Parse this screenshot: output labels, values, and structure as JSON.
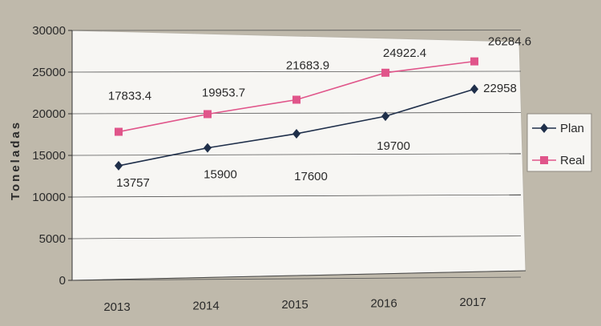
{
  "chart_data": {
    "type": "line",
    "categories": [
      "2013",
      "2014",
      "2015",
      "2016",
      "2017"
    ],
    "ylabel": "Toneladas",
    "ylim": [
      0,
      30000
    ],
    "yticks": [
      "0",
      "5000",
      "10000",
      "15000",
      "20000",
      "25000",
      "30000"
    ],
    "grid": true,
    "legend_position": "right",
    "series": [
      {
        "name": "Plan",
        "values": [
          13757,
          15900,
          17600,
          19700,
          22958
        ],
        "labels": [
          "13757",
          "15900",
          "17600",
          "19700",
          "22958"
        ],
        "color": "#1f2f4a",
        "marker": "diamond"
      },
      {
        "name": "Real",
        "values": [
          17833.4,
          19953.7,
          21683.9,
          24922.4,
          26284.6
        ],
        "labels": [
          "17833.4",
          "19953.7",
          "21683.9",
          "24922.4",
          "26284.6"
        ],
        "color": "#e0558a",
        "marker": "square"
      }
    ]
  }
}
